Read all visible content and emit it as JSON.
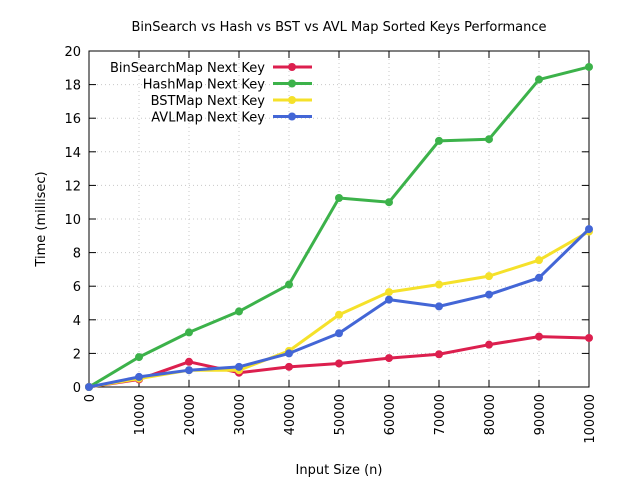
{
  "chart_data": {
    "type": "line",
    "title": "BinSearch vs Hash vs BST vs AVL Map Sorted Keys Performance",
    "xlabel": "Input Size (n)",
    "ylabel": "Time (millisec)",
    "xlim": [
      0,
      100000
    ],
    "ylim": [
      0,
      20
    ],
    "x": [
      0,
      10000,
      20000,
      30000,
      40000,
      50000,
      60000,
      70000,
      80000,
      90000,
      100000
    ],
    "xticks": [
      "0",
      "10000",
      "20000",
      "30000",
      "40000",
      "50000",
      "60000",
      "70000",
      "80000",
      "90000",
      "100000"
    ],
    "yticks": [
      "0",
      "2",
      "4",
      "6",
      "8",
      "10",
      "12",
      "14",
      "16",
      "18",
      "20"
    ],
    "grid": true,
    "legend_position": "top-left",
    "series": [
      {
        "name": "BinSearchMap Next Key",
        "color": "#dc1f4e",
        "values": [
          0,
          0.45,
          1.5,
          0.85,
          1.2,
          1.4,
          1.72,
          1.95,
          2.52,
          3.0,
          2.92
        ]
      },
      {
        "name": "HashMap Next Key",
        "color": "#3cb24a",
        "values": [
          0,
          1.78,
          3.25,
          4.5,
          6.1,
          11.25,
          11.0,
          14.65,
          14.75,
          18.3,
          19.05
        ]
      },
      {
        "name": "BSTMap Next Key",
        "color": "#f5e12a",
        "values": [
          0,
          0.5,
          1.0,
          1.0,
          2.15,
          4.3,
          5.65,
          6.1,
          6.6,
          7.55,
          9.25
        ]
      },
      {
        "name": "AVLMap Next Key",
        "color": "#4366d6",
        "values": [
          0,
          0.6,
          1.0,
          1.2,
          2.0,
          3.2,
          5.2,
          4.8,
          5.5,
          6.5,
          9.4
        ]
      }
    ]
  }
}
